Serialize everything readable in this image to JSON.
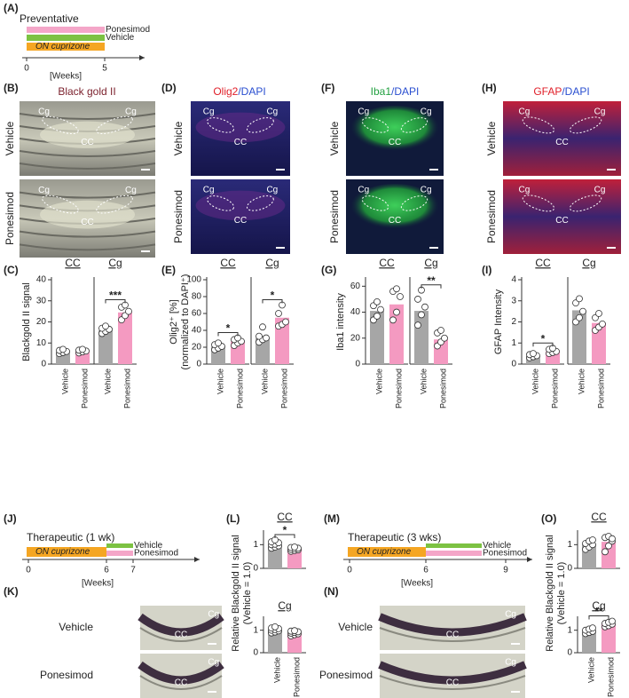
{
  "panel_labels": [
    "(A)",
    "(B)",
    "(C)",
    "(D)",
    "(E)",
    "(F)",
    "(G)",
    "(H)",
    "(I)",
    "(J)",
    "(K)",
    "(L)",
    "(M)",
    "(N)",
    "(O)"
  ],
  "timelines": [
    {
      "title": "Preventative",
      "bars": [
        "Ponesimod",
        "Vehicle",
        "ON cuprizone"
      ],
      "colors": [
        "#f4a6c8",
        "#7cc242",
        "#f5a623"
      ],
      "ticks": [
        0,
        5
      ],
      "unit": "[Weeks]"
    },
    {
      "title": "Therapeutic (1 wk)",
      "bars": [
        "ON cuprizone",
        "Vehicle",
        "Ponesimod"
      ],
      "colors": [
        "#f5a623",
        "#7cc242",
        "#f4a6c8"
      ],
      "ticks": [
        0,
        6,
        7
      ],
      "unit": "[Weeks]"
    },
    {
      "title": "Therapeutic (3 wks)",
      "bars": [
        "ON cuprizone",
        "Vehicle",
        "Ponesimod"
      ],
      "colors": [
        "#f5a623",
        "#7cc242",
        "#f4a6c8"
      ],
      "ticks": [
        0,
        6,
        9
      ],
      "unit": "[Weeks]"
    }
  ],
  "image_panels": [
    {
      "title": [
        "Black gold II"
      ],
      "title_colors": [
        "#7a1f2b"
      ],
      "rows": [
        "Vehicle",
        "Ponesimod"
      ],
      "labels": [
        [
          "Cg",
          "CC",
          "Cg"
        ],
        [
          "Cg",
          "CC",
          "Cg"
        ]
      ]
    },
    {
      "title": [
        "Olig2",
        "/DAPI"
      ],
      "title_colors": [
        "#e0202a",
        "#2a4fd0"
      ],
      "rows": [
        "Vehicle",
        "Ponesimod"
      ],
      "labels": [
        [
          "Cg",
          "CC",
          "Cg"
        ],
        [
          "Cg",
          "CC",
          "Cg"
        ]
      ]
    },
    {
      "title": [
        "Iba1",
        "/DAPI"
      ],
      "title_colors": [
        "#22a040",
        "#2a4fd0"
      ],
      "rows": [
        "Vehicle",
        "Ponesimod"
      ],
      "labels": [
        [
          "Cg",
          "CC",
          "Cg"
        ],
        [
          "Cg",
          "CC",
          "Cg"
        ]
      ]
    },
    {
      "title": [
        "GFAP",
        "/DAPI"
      ],
      "title_colors": [
        "#e0202a",
        "#2a4fd0"
      ],
      "rows": [
        "Vehicle",
        "Ponesimod"
      ],
      "labels": [
        [
          "Cg",
          "CC",
          "Cg"
        ],
        [
          "Cg",
          "CC",
          "Cg"
        ]
      ]
    },
    {
      "rows": [
        "Vehicle",
        "Ponesimod"
      ],
      "labels": [
        [
          "CC",
          "Cg"
        ],
        [
          "CC",
          "Cg"
        ]
      ]
    },
    {
      "rows": [
        "Vehicle",
        "Ponesimod"
      ],
      "labels": [
        [
          "CC",
          "Cg"
        ],
        [
          "CC",
          "Cg"
        ]
      ]
    }
  ],
  "chart_data": [
    {
      "type": "bar",
      "title": "CC",
      "categories": [
        "Vehicle",
        "Ponesimod"
      ],
      "values": [
        5.8,
        6.1
      ],
      "colors": [
        "#a6a6a6",
        "#f49ac1"
      ],
      "points": [
        [
          5,
          5.5,
          6,
          6.5,
          7
        ],
        [
          5.3,
          5.8,
          6.2,
          6.6,
          7
        ]
      ],
      "ylim": [
        0,
        40
      ],
      "yticks": [
        0,
        10,
        20,
        30,
        40
      ],
      "ylabel": [
        "Blackgold II signal"
      ]
    },
    {
      "type": "bar",
      "title": "Cg",
      "categories": [
        "Vehicle",
        "Ponesimod"
      ],
      "values": [
        16,
        24.5
      ],
      "colors": [
        "#a6a6a6",
        "#f49ac1"
      ],
      "points": [
        [
          14.5,
          15.5,
          16.5,
          17,
          18
        ],
        [
          21,
          23,
          25,
          27,
          28
        ]
      ],
      "ylim": [
        0,
        40
      ],
      "significance": "***"
    },
    {
      "type": "bar",
      "title": "CC",
      "categories": [
        "Vehicle",
        "Ponesimod"
      ],
      "values": [
        21,
        27
      ],
      "colors": [
        "#a6a6a6",
        "#f49ac1"
      ],
      "points": [
        [
          17,
          19,
          21,
          23,
          25
        ],
        [
          22,
          25,
          27,
          29,
          31
        ]
      ],
      "ylim": [
        0,
        100
      ],
      "yticks": [
        0,
        20,
        40,
        60,
        80,
        100
      ],
      "ylabel": [
        "Olig2⁺ [%]",
        "(normalized to DAPI⁺)"
      ],
      "significance": "*"
    },
    {
      "type": "bar",
      "title": "Cg",
      "categories": [
        "Vehicle",
        "Ponesimod"
      ],
      "values": [
        31,
        55
      ],
      "colors": [
        "#a6a6a6",
        "#f49ac1"
      ],
      "points": [
        [
          26,
          29,
          31,
          33,
          44
        ],
        [
          45,
          47,
          50,
          60,
          70
        ]
      ],
      "ylim": [
        0,
        100
      ],
      "significance": "*"
    },
    {
      "type": "bar",
      "title": "CC",
      "categories": [
        "Vehicle",
        "Ponesimod"
      ],
      "values": [
        41,
        46
      ],
      "colors": [
        "#a6a6a6",
        "#f49ac1"
      ],
      "points": [
        [
          34,
          37,
          42,
          45,
          48
        ],
        [
          34,
          40,
          52,
          56,
          58
        ]
      ],
      "ylim": [
        0,
        65
      ],
      "yticks": [
        0,
        20,
        40,
        60
      ],
      "ylabel": [
        "Iba1 intensity"
      ]
    },
    {
      "type": "bar",
      "title": "Cg",
      "categories": [
        "Vehicle",
        "Ponesimod"
      ],
      "values": [
        41,
        19
      ],
      "colors": [
        "#a6a6a6",
        "#f49ac1"
      ],
      "points": [
        [
          30,
          38,
          44,
          50,
          57
        ],
        [
          14,
          17,
          20,
          24,
          26
        ]
      ],
      "ylim": [
        0,
        65
      ],
      "significance": "**"
    },
    {
      "type": "bar",
      "title": "CC",
      "categories": [
        "Vehicle",
        "Ponesimod"
      ],
      "values": [
        0.38,
        0.6
      ],
      "colors": [
        "#a6a6a6",
        "#f49ac1"
      ],
      "points": [
        [
          0.3,
          0.35,
          0.4,
          0.45,
          0.5
        ],
        [
          0.5,
          0.55,
          0.6,
          0.7,
          0.75
        ]
      ],
      "ylim": [
        0,
        4
      ],
      "yticks": [
        0,
        1,
        2,
        3,
        4
      ],
      "ylabel": [
        "GFAP Intensity"
      ],
      "significance": "*"
    },
    {
      "type": "bar",
      "title": "Cg",
      "categories": [
        "Vehicle",
        "Ponesimod"
      ],
      "values": [
        2.55,
        1.95
      ],
      "colors": [
        "#a6a6a6",
        "#f49ac1"
      ],
      "points": [
        [
          2.0,
          2.2,
          2.5,
          2.9,
          3.1
        ],
        [
          1.6,
          1.75,
          1.9,
          2.2,
          2.4
        ]
      ],
      "ylim": [
        0,
        4
      ]
    },
    {
      "type": "bar",
      "title": "CC",
      "values": [
        1.0,
        0.82
      ],
      "colors": [
        "#a6a6a6",
        "#f49ac1"
      ],
      "points": [
        [
          0.85,
          0.9,
          0.95,
          1.0,
          1.02,
          1.08,
          1.12,
          1.2
        ],
        [
          0.72,
          0.75,
          0.78,
          0.8,
          0.82,
          0.85,
          0.88,
          0.9
        ]
      ],
      "ylim": [
        0,
        1.5
      ],
      "yticks": [
        0,
        1
      ],
      "ylabel": [
        "Relative Blackgold II signal",
        "(Vehicle = 1.0)"
      ],
      "significance": "*"
    },
    {
      "type": "bar",
      "title": "Cg",
      "categories": [
        "Vehicle",
        "Ponesimod"
      ],
      "values": [
        1.0,
        0.87
      ],
      "colors": [
        "#a6a6a6",
        "#f49ac1"
      ],
      "points": [
        [
          0.88,
          0.92,
          0.97,
          1.0,
          1.03,
          1.07,
          1.1,
          1.15
        ],
        [
          0.75,
          0.8,
          0.84,
          0.87,
          0.9,
          0.93,
          0.96,
          0.98
        ]
      ],
      "ylim": [
        0,
        1.5
      ],
      "yticks": [
        0,
        1
      ]
    },
    {
      "type": "bar",
      "title": "CC",
      "values": [
        1.0,
        1.12
      ],
      "colors": [
        "#a6a6a6",
        "#f49ac1"
      ],
      "points": [
        [
          0.8,
          0.9,
          1.0,
          1.05,
          1.15,
          1.2
        ],
        [
          0.7,
          0.95,
          1.15,
          1.3,
          1.35,
          1.25
        ]
      ],
      "ylim": [
        0,
        1.5
      ],
      "yticks": [
        0,
        1
      ],
      "ylabel": [
        "Relative Blackgold II signal",
        "(Vehicle = 1.0)"
      ]
    },
    {
      "type": "bar",
      "title": "Cg",
      "categories": [
        "Vehicle",
        "Ponesimod"
      ],
      "values": [
        1.0,
        1.28
      ],
      "colors": [
        "#a6a6a6",
        "#f49ac1"
      ],
      "points": [
        [
          0.85,
          0.9,
          0.95,
          1.0,
          1.05,
          1.1
        ],
        [
          1.15,
          1.2,
          1.27,
          1.3,
          1.35,
          1.4
        ]
      ],
      "ylim": [
        0,
        1.5
      ],
      "yticks": [
        0,
        1
      ],
      "significance": "**"
    }
  ]
}
